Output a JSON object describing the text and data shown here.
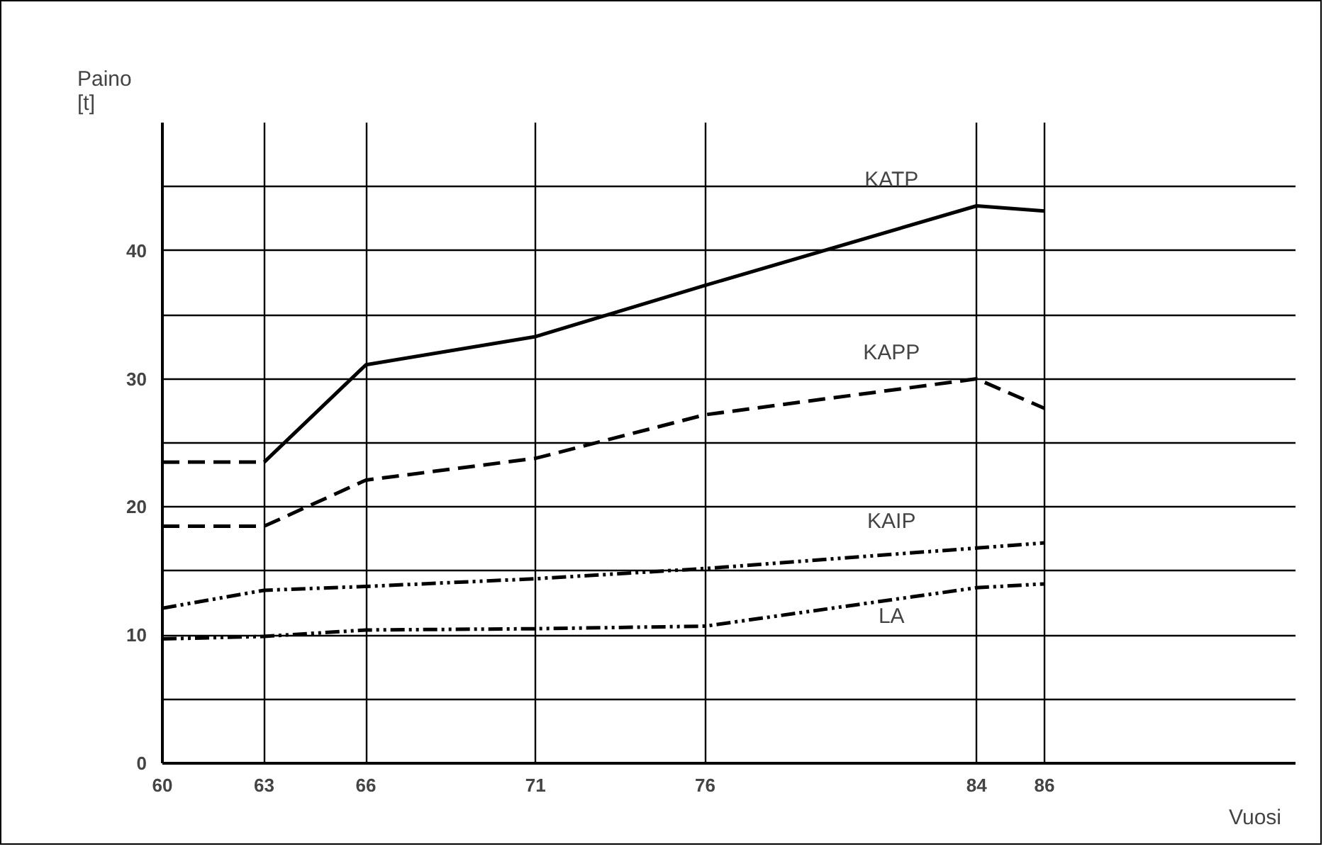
{
  "chart_data": {
    "type": "line",
    "xlabel": "Vuosi",
    "ylabel": "Paino\n[t]",
    "xlim": [
      60,
      93.4
    ],
    "ylim": [
      0,
      50
    ],
    "xticks": [
      60,
      63,
      66,
      71,
      76,
      84,
      86
    ],
    "yticks": [
      0,
      {
        "value": 5,
        "label": null
      },
      10,
      {
        "value": 15,
        "label": null
      },
      20,
      {
        "value": 25,
        "label": null
      },
      30,
      {
        "value": 35,
        "label": null
      },
      40,
      {
        "value": 45,
        "label": null
      }
    ],
    "grid": true,
    "marker": "none",
    "series": [
      {
        "x": [
          60,
          63
        ],
        "values": [
          23.5,
          23.5
        ],
        "color": "#000000",
        "line_style": "dashed"
      },
      {
        "name": "KATP",
        "x": [
          63,
          66,
          71,
          76,
          84,
          86
        ],
        "values": [
          23.5,
          31.1,
          33.3,
          37.3,
          43.5,
          43.1
        ],
        "color": "#000000",
        "line_style": "solid"
      },
      {
        "name": "KAPP",
        "x": [
          60,
          63,
          66,
          71,
          76,
          84,
          86
        ],
        "values": [
          18.5,
          18.5,
          22.1,
          23.8,
          27.2,
          30.0,
          27.7
        ],
        "color": "#000000",
        "line_style": "dashed"
      },
      {
        "name": "KAIP",
        "x": [
          60,
          63,
          66,
          71,
          76,
          84,
          86
        ],
        "values": [
          12.1,
          13.5,
          13.8,
          14.4,
          15.2,
          16.8,
          17.2
        ],
        "color": "#000000",
        "line_style": "dotted"
      },
      {
        "name": "LA",
        "x": [
          60,
          63,
          66,
          71,
          76,
          84,
          86
        ],
        "values": [
          9.7,
          9.9,
          10.4,
          10.5,
          10.7,
          13.7,
          14.0
        ],
        "color": "#000000",
        "line_style": "dotted"
      }
    ]
  }
}
